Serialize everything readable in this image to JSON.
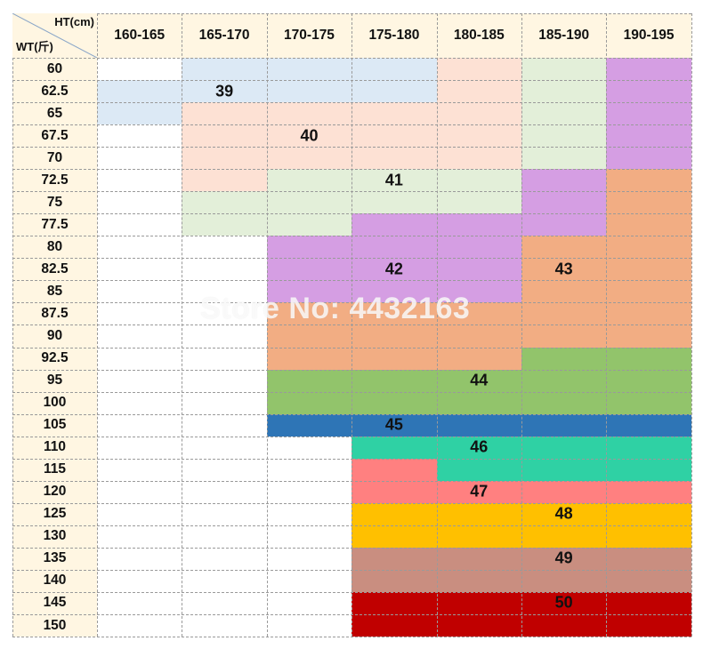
{
  "corner": {
    "height_label": "HT(cm)",
    "weight_label": "WT(斤)"
  },
  "height_ranges": [
    "160-165",
    "165-170",
    "170-175",
    "175-180",
    "180-185",
    "185-190",
    "190-195"
  ],
  "weights": [
    "60",
    "62.5",
    "65",
    "67.5",
    "70",
    "72.5",
    "75",
    "77.5",
    "80",
    "82.5",
    "85",
    "87.5",
    "90",
    "92.5",
    "95",
    "100",
    "105",
    "110",
    "115",
    "120",
    "125",
    "130",
    "135",
    "140",
    "145",
    "150"
  ],
  "sizes": {
    "39": "39",
    "40": "40",
    "41": "41",
    "42": "42",
    "43": "43",
    "44": "44",
    "45": "45",
    "46": "46",
    "47": "47",
    "48": "48",
    "49": "49",
    "50": "50"
  },
  "colors": {
    "39": "#dce9f5",
    "40": "#fde1d4",
    "41": "#e3efd9",
    "42": "#d59ee3",
    "43": "#f2ad83",
    "44": "#92c46b",
    "45": "#2e75b6",
    "46": "#2fd1a4",
    "47": "#ff8080",
    "48": "#ffc000",
    "49": "#c98e80",
    "50": "#c00000",
    "header_bg": "#fff6e2",
    "empty": "#ffffff"
  },
  "size_grid": [
    [
      "",
      "39",
      "39",
      "39",
      "40",
      "41",
      "42"
    ],
    [
      "39",
      "39",
      "39",
      "39",
      "40",
      "41",
      "42"
    ],
    [
      "39",
      "40",
      "40",
      "40",
      "40",
      "41",
      "42"
    ],
    [
      "",
      "40",
      "40",
      "40",
      "40",
      "41",
      "42"
    ],
    [
      "",
      "40",
      "40",
      "40",
      "40",
      "41",
      "42"
    ],
    [
      "",
      "40",
      "41",
      "41",
      "41",
      "42",
      "43"
    ],
    [
      "",
      "41",
      "41",
      "41",
      "41",
      "42",
      "43"
    ],
    [
      "",
      "41",
      "41",
      "42",
      "42",
      "42",
      "43"
    ],
    [
      "",
      "",
      "42",
      "42",
      "42",
      "43",
      "43"
    ],
    [
      "",
      "",
      "42",
      "42",
      "42",
      "43",
      "43"
    ],
    [
      "",
      "",
      "42",
      "42",
      "42",
      "43",
      "43"
    ],
    [
      "",
      "",
      "43",
      "43",
      "43",
      "43",
      "43"
    ],
    [
      "",
      "",
      "43",
      "43",
      "43",
      "43",
      "43"
    ],
    [
      "",
      "",
      "43",
      "43",
      "43",
      "44",
      "44"
    ],
    [
      "",
      "",
      "44",
      "44",
      "44",
      "44",
      "44"
    ],
    [
      "",
      "",
      "44",
      "44",
      "44",
      "44",
      "44"
    ],
    [
      "",
      "",
      "45",
      "45",
      "45",
      "45",
      "45"
    ],
    [
      "",
      "",
      "",
      "46",
      "46",
      "46",
      "46"
    ],
    [
      "",
      "",
      "",
      "47",
      "46",
      "46",
      "46"
    ],
    [
      "",
      "",
      "",
      "47",
      "47",
      "47",
      "47"
    ],
    [
      "",
      "",
      "",
      "48",
      "48",
      "48",
      "48"
    ],
    [
      "",
      "",
      "",
      "48",
      "48",
      "48",
      "48"
    ],
    [
      "",
      "",
      "",
      "49",
      "49",
      "49",
      "49"
    ],
    [
      "",
      "",
      "",
      "49",
      "49",
      "49",
      "49"
    ],
    [
      "",
      "",
      "",
      "50",
      "50",
      "50",
      "50"
    ],
    [
      "",
      "",
      "",
      "50",
      "50",
      "50",
      "50"
    ]
  ],
  "size_labels": [
    {
      "size": "39",
      "row": 1,
      "col": 1
    },
    {
      "size": "40",
      "row": 3,
      "col": 2
    },
    {
      "size": "41",
      "row": 5,
      "col": 3
    },
    {
      "size": "42",
      "row": 9,
      "col": 3
    },
    {
      "size": "43",
      "row": 9,
      "col": 5
    },
    {
      "size": "44",
      "row": 14,
      "col": 4
    },
    {
      "size": "45",
      "row": 16,
      "col": 3
    },
    {
      "size": "46",
      "row": 17,
      "col": 4
    },
    {
      "size": "47",
      "row": 19,
      "col": 4
    },
    {
      "size": "48",
      "row": 20,
      "col": 5
    },
    {
      "size": "49",
      "row": 22,
      "col": 5
    },
    {
      "size": "50",
      "row": 24,
      "col": 5
    }
  ],
  "watermark": "Store No: 4432163"
}
